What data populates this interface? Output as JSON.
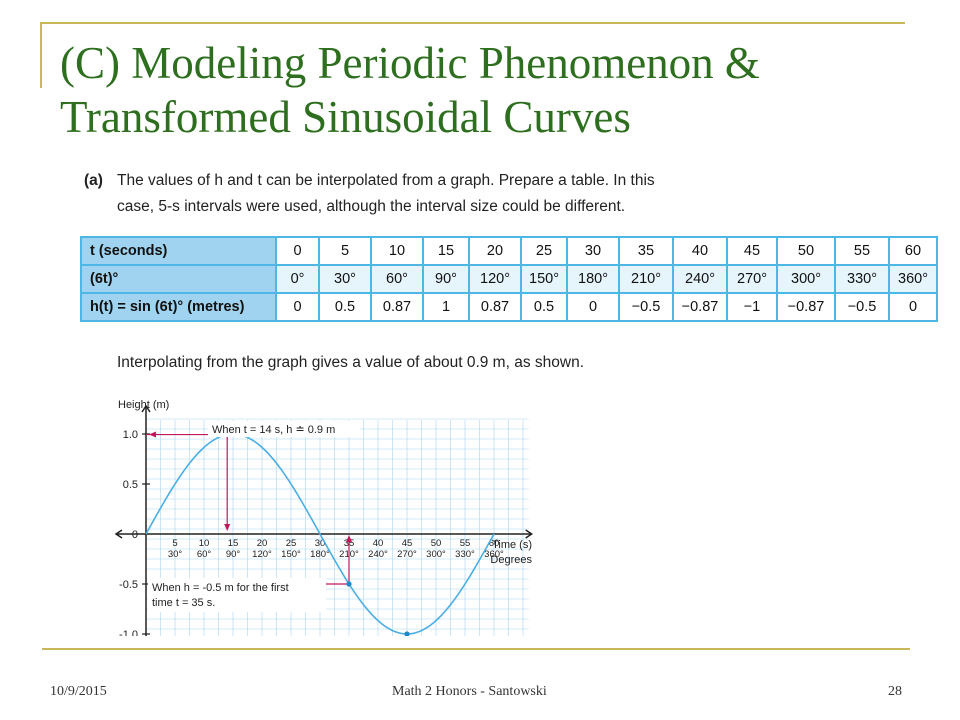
{
  "title": "(C) Modeling Periodic Phenomenon & Transformed Sinusoidal Curves",
  "part_a": {
    "label": "(a)",
    "text_line1": "The values of h and t can be interpolated from a graph. Prepare a table. In this",
    "text_line2": "case, 5-s intervals were used, although the interval size could be different."
  },
  "table": {
    "rows": [
      {
        "header": "t (seconds)",
        "cells": [
          "0",
          "5",
          "10",
          "15",
          "20",
          "25",
          "30",
          "35",
          "40",
          "45",
          "50",
          "55",
          "60"
        ]
      },
      {
        "header": "(6t)°",
        "cells": [
          "0°",
          "30°",
          "60°",
          "90°",
          "120°",
          "150°",
          "180°",
          "210°",
          "240°",
          "270°",
          "300°",
          "330°",
          "360°"
        ]
      },
      {
        "header": "h(t) = sin (6t)° (metres)",
        "cells": [
          "0",
          "0.5",
          "0.87",
          "1",
          "0.87",
          "0.5",
          "0",
          "−0.5",
          "−0.87",
          "−1",
          "−0.87",
          "−0.5",
          "0"
        ]
      }
    ]
  },
  "interp_text": "Interpolating from the graph gives a value of about 0.9 m, as shown.",
  "graph": {
    "ylabel": "Height (m)",
    "y_ticks": [
      "1.0",
      "0.5",
      "0",
      "-0.5",
      "-1.0"
    ],
    "x_time_ticks": [
      "5",
      "10",
      "15",
      "20",
      "25",
      "30",
      "35",
      "40",
      "45",
      "50",
      "55",
      "60"
    ],
    "x_deg_ticks": [
      "30°",
      "60°",
      "90°",
      "120°",
      "150°",
      "180°",
      "210°",
      "240°",
      "270°",
      "300°",
      "330°",
      "360°"
    ],
    "xlabel_time": "Time (s)",
    "xlabel_deg": "Degrees",
    "annotation1": "When t = 14 s, h ≐ 0.9 m",
    "annotation2_line1": "When h = -0.5 m for the first",
    "annotation2_line2": "time t = 35 s.",
    "colors": {
      "curve": "#4aaee4",
      "grid": "#a9d6ef",
      "marker": "#c2185b",
      "points": "#1e88c9"
    }
  },
  "footer": {
    "date": "10/9/2015",
    "course": "Math 2 Honors - Santowski",
    "page": "28"
  }
}
